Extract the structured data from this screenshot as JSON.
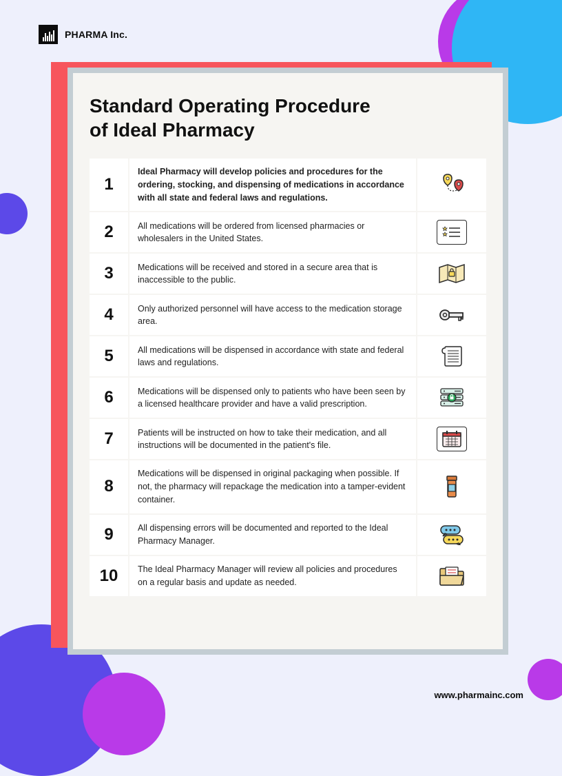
{
  "brand": {
    "name": "PHARMA Inc."
  },
  "title_line1": "Standard Operating Procedure",
  "title_line2": "of Ideal Pharmacy",
  "footer_url": "www.pharmainc.com",
  "colors": {
    "page_bg": "#eef0fc",
    "accent_red": "#f7555c",
    "card_border": "#c3cdd3",
    "card_bg": "#f6f5f2",
    "cell_bg": "#ffffff",
    "circle_blue_light": "#2fb6f5",
    "circle_purple": "#b93ae8",
    "circle_indigo": "#5c49e8"
  },
  "items": [
    {
      "n": "1",
      "bold": true,
      "text": "Ideal Pharmacy will develop policies and procedures for the ordering, stocking, and dispensing of medications in accordance with all state and federal laws and regulations.",
      "icon": "route-pins"
    },
    {
      "n": "2",
      "bold": false,
      "text": "All medications will be ordered from licensed pharmacies or wholesalers in the United States.",
      "icon": "list-stars"
    },
    {
      "n": "3",
      "bold": false,
      "text": "Medications will be received and stored in a secure area that is inaccessible to the public.",
      "icon": "map-lock"
    },
    {
      "n": "4",
      "bold": false,
      "text": "Only authorized personnel will have access to the medication storage area.",
      "icon": "key"
    },
    {
      "n": "5",
      "bold": false,
      "text": "All medications will be dispensed in accordance with state and federal laws and regulations.",
      "icon": "scroll"
    },
    {
      "n": "6",
      "bold": false,
      "text": "Medications will be dispensed only to patients who have been seen by a licensed healthcare provider and have a valid prescription.",
      "icon": "server-lock"
    },
    {
      "n": "7",
      "bold": false,
      "text": "Patients will be instructed on how to take their medication, and all instructions will be documented in the patient's file.",
      "icon": "calendar"
    },
    {
      "n": "8",
      "bold": false,
      "text": "Medications will be dispensed in original packaging when possible. If not, the pharmacy will repackage the medication into a tamper-evident container.",
      "icon": "pill-bottle"
    },
    {
      "n": "9",
      "bold": false,
      "text": "All dispensing errors will be documented and reported to the Ideal Pharmacy Manager.",
      "icon": "chat-bubbles"
    },
    {
      "n": "10",
      "bold": false,
      "text": "The Ideal Pharmacy Manager will review all policies and procedures on a regular basis and update as needed.",
      "icon": "folder-doc"
    }
  ],
  "icon_svgs": {
    "route-pins": "<svg width='40' height='34' viewBox='0 0 40 34'><path d='M8 8 Q8 2 14 2 Q20 2 20 8 Q20 14 14 18 Q8 14 8 8 Z' fill='#f7d95b' stroke='#2b2b2b' stroke-width='1.5'/><circle cx='14' cy='8' r='2' fill='#fff' stroke='#2b2b2b'/><path d='M14 18 Q14 26 22 26 Q30 26 30 20' fill='none' stroke='#2b2b2b' stroke-width='1.2' stroke-dasharray='2 2'/><path d='M24 16 Q24 10 30 10 Q36 10 36 16 Q36 22 30 26 Q24 22 24 16 Z' fill='#d94a4a' stroke='#2b2b2b' stroke-width='1.5'/><circle cx='30' cy='16' r='2' fill='#fff' stroke='#2b2b2b'/></svg>",
    "list-stars": "<svg width='28' height='24' viewBox='0 0 28 24'><path d='M4 4 l1 2 l2 0 l-1.5 1.5 l0.5 2 l-2 -1 l-2 1 l0.5 -2 l-1.5 -1.5 l2 0 z' fill='#f7d95b' stroke='#2b2b2b' stroke-width='0.8'/><path d='M4 12 l1 2 l2 0 l-1.5 1.5 l0.5 2 l-2 -1 l-2 1 l0.5 -2 l-1.5 -1.5 l2 0 z' fill='#f7d95b' stroke='#2b2b2b' stroke-width='0.8'/><line x1='10' y1='6' x2='26' y2='6' stroke='#2b2b2b' stroke-width='1.5'/><line x1='10' y1='12' x2='26' y2='12' stroke='#2b2b2b' stroke-width='1.5'/><line x1='10' y1='18' x2='26' y2='18' stroke='#2b2b2b' stroke-width='1.5'/></svg>",
    "map-lock": "<svg width='40' height='30' viewBox='0 0 40 30'><path d='M2 6 L14 2 L26 6 L38 2 L38 24 L26 28 L14 24 L2 28 Z' fill='#f7e9b8' stroke='#2b2b2b' stroke-width='1.5'/><line x1='14' y1='2' x2='14' y2='24' stroke='#2b2b2b' stroke-width='1'/><line x1='26' y1='6' x2='26' y2='28' stroke='#2b2b2b' stroke-width='1'/><rect x='16' y='12' width='8' height='7' rx='1' fill='#f7d95b' stroke='#2b2b2b' stroke-width='1.2'/><path d='M18 12 v-2 a2 2 0 0 1 4 0 v2' fill='none' stroke='#2b2b2b' stroke-width='1.2'/></svg>",
    "key": "<svg width='40' height='28' viewBox='0 0 40 28'><circle cx='10' cy='14' r='7' fill='#e8e8e8' stroke='#2b2b2b' stroke-width='1.8'/><circle cx='10' cy='14' r='2.5' fill='#fff' stroke='#2b2b2b' stroke-width='1.5'/><rect x='16' y='11' width='20' height='6' fill='#e8e8e8' stroke='#2b2b2b' stroke-width='1.8'/><rect x='30' y='17' width='3' height='5' fill='#e8e8e8' stroke='#2b2b2b' stroke-width='1.5'/><rect x='34' y='17' width='2' height='3' fill='#e8e8e8' stroke='#2b2b2b' stroke-width='1.5'/></svg>",
    "scroll": "<svg width='32' height='32' viewBox='0 0 32 32'><path d='M6 4 Q2 4 2 8 Q2 12 6 12 L6 28 Q6 30 8 30 L26 30 Q30 30 30 26 L30 4 Q30 2 28 2 L8 2 Q6 2 6 4 Z' fill='#fafafa' stroke='#2b2b2b' stroke-width='1.5'/><line x1='10' y1='8' x2='26' y2='8' stroke='#2b2b2b'/><line x1='10' y1='12' x2='26' y2='12' stroke='#2b2b2b'/><line x1='10' y1='16' x2='26' y2='16' stroke='#2b2b2b'/><line x1='10' y1='20' x2='26' y2='20' stroke='#2b2b2b'/><line x1='10' y1='24' x2='26' y2='24' stroke='#2b2b2b'/></svg>",
    "server-lock": "<svg width='40' height='30' viewBox='0 0 40 30'><rect x='4' y='2' width='32' height='7' rx='2' fill='#d8f0e8' stroke='#2b2b2b' stroke-width='1.3'/><rect x='4' y='11' width='32' height='7' rx='2' fill='#d8f0e8' stroke='#2b2b2b' stroke-width='1.3'/><rect x='4' y='20' width='32' height='7' rx='2' fill='#d8f0e8' stroke='#2b2b2b' stroke-width='1.3'/><circle cx='9' cy='5.5' r='1' fill='#2b2b2b'/><circle cx='9' cy='14.5' r='1' fill='#2b2b2b'/><circle cx='9' cy='23.5' r='1' fill='#2b2b2b'/><line x1='24' y1='5.5' x2='33' y2='5.5' stroke='#2b2b2b' stroke-width='1.2'/><line x1='24' y1='14.5' x2='33' y2='14.5' stroke='#2b2b2b' stroke-width='1.2'/><line x1='24' y1='23.5' x2='33' y2='23.5' stroke='#2b2b2b' stroke-width='1.2'/><circle cx='20' cy='15' r='6' fill='#2aa85a' stroke='#2b2b2b' stroke-width='1.3'/><rect x='17.5' y='13.5' width='5' height='4' rx='0.5' fill='#fff'/><path d='M18.5 13.5 v-1.5 a1.5 1.5 0 0 1 3 0 v1.5' fill='none' stroke='#fff' stroke-width='1'/></svg>",
    "calendar": "<svg width='30' height='26' viewBox='0 0 30 26'><rect x='2' y='4' width='26' height='20' rx='2' fill='#fdeeee' stroke='#2b2b2b' stroke-width='1.5'/><rect x='2' y='4' width='26' height='5' fill='#d94a4a' stroke='#2b2b2b' stroke-width='1.5'/><rect x='7' y='1' width='2' height='5' fill='#2b2b2b'/><rect x='21' y='1' width='2' height='5' fill='#2b2b2b'/><line x1='6' y1='13' x2='24' y2='13' stroke='#2b2b2b' stroke-width='0.8'/><line x1='6' y1='17' x2='24' y2='17' stroke='#2b2b2b' stroke-width='0.8'/><line x1='6' y1='21' x2='24' y2='21' stroke='#2b2b2b' stroke-width='0.8'/><line x1='10' y1='10' x2='10' y2='23' stroke='#2b2b2b' stroke-width='0.8'/><line x1='15' y1='10' x2='15' y2='23' stroke='#2b2b2b' stroke-width='0.8'/><line x1='20' y1='10' x2='20' y2='23' stroke='#2b2b2b' stroke-width='0.8'/></svg>",
    "pill-bottle": "<svg width='22' height='34' viewBox='0 0 22 34'><rect x='4' y='2' width='14' height='6' rx='1' fill='#d87a3a' stroke='#2b2b2b' stroke-width='1.5'/><rect x='5' y='8' width='12' height='24' rx='2' fill='#e88b4a' stroke='#2b2b2b' stroke-width='1.5'/><rect x='6' y='14' width='10' height='10' fill='#8fd0e8' stroke='#2b2b2b' stroke-width='1.2'/></svg>",
    "chat-bubbles": "<svg width='40' height='30' viewBox='0 0 40 30'><rect x='4' y='2' width='28' height='12' rx='6' fill='#7fc8e8' stroke='#2b2b2b' stroke-width='1.5'/><path d='M10 13 l-3 4 l6 -3 z' fill='#7fc8e8' stroke='#2b2b2b' stroke-width='1.5'/><circle cx='12' cy='8' r='1.5' fill='#2b2b2b'/><circle cx='18' cy='8' r='1.5' fill='#2b2b2b'/><circle cx='24' cy='8' r='1.5' fill='#2b2b2b'/><rect x='8' y='16' width='28' height='12' rx='6' fill='#f7d95b' stroke='#2b2b2b' stroke-width='1.5'/><path d='M30 27 l3 4 l-6 -3 z' fill='#f7d95b' stroke='#2b2b2b' stroke-width='1.5'/><circle cx='16' cy='22' r='1.5' fill='#2b2b2b'/><circle cx='22' cy='22' r='1.5' fill='#2b2b2b'/><circle cx='28' cy='22' r='1.5' fill='#2b2b2b'/></svg>",
    "folder-doc": "<svg width='38' height='30' viewBox='0 0 38 30'><path d='M2 8 L2 26 Q2 28 4 28 L34 28 Q36 28 36 26 L36 10 Q36 8 34 8 L16 8 L13 4 L4 4 Q2 4 2 6 Z' fill='#e8c77a' stroke='#2b2b2b' stroke-width='1.5'/><rect x='10' y='2' width='18' height='18' rx='1' fill='#fff' stroke='#2b2b2b' stroke-width='1.3'/><line x1='13' y1='6' x2='25' y2='6' stroke='#d94a4a' stroke-width='1.2'/><line x1='13' y1='10' x2='25' y2='10' stroke='#d94a4a' stroke-width='1.2'/><line x1='13' y1='14' x2='25' y2='14' stroke='#d94a4a' stroke-width='1.2'/><path d='M2 14 L34 14 Q36 14 35.5 16 L33 26 Q32.5 28 30.5 28 L4 28 Q2 28 2 26 Z' fill='#f0d89a' stroke='#2b2b2b' stroke-width='1.5'/></svg>"
  }
}
